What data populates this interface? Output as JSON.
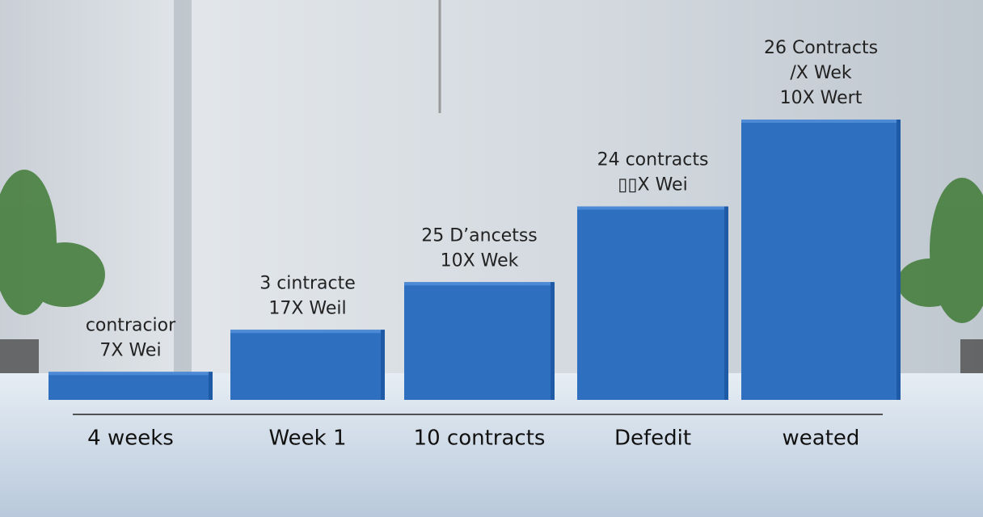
{
  "chart_data": {
    "type": "bar",
    "categories": [
      "4 weeks",
      "Week 1",
      "10 contracts",
      "Defedit",
      "weated"
    ],
    "values": [
      10,
      25,
      42,
      69,
      100
    ],
    "bar_labels": [
      [
        "contracior",
        "7X Wei"
      ],
      [
        "3 cintracte",
        "17X Weil"
      ],
      [
        "25 D’ancetss",
        "10X Wek"
      ],
      [
        "24 contracts",
        "▯▯X Wei"
      ],
      [
        "26 Contracts",
        "/X Wek",
        "10X Wert"
      ]
    ],
    "color": "#2f6fc0",
    "ylim": [
      0,
      100
    ]
  }
}
